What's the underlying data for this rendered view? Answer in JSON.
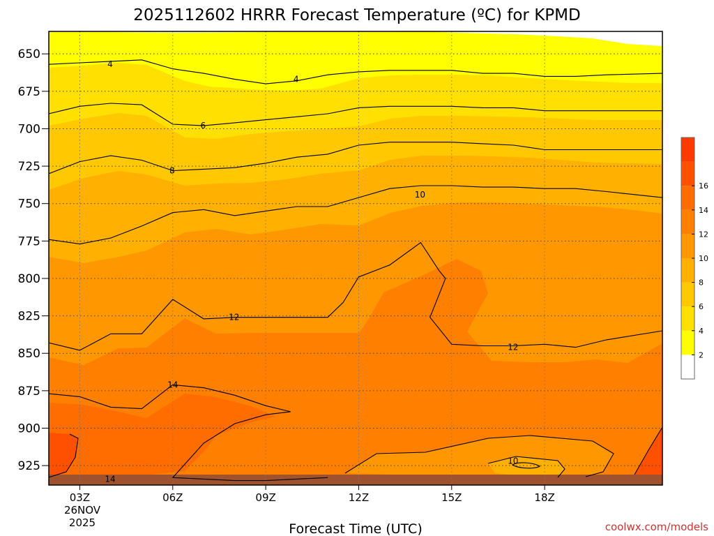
{
  "chart_data": {
    "type": "contour",
    "title": "2025112602 HRRR Forecast Temperature (ºC) for KPMD",
    "xlabel": "Forecast Time (UTC)",
    "ylabel": "",
    "credit": "coolwx.com/models",
    "x_ticks": [
      "03Z",
      "06Z",
      "09Z",
      "12Z",
      "15Z",
      "18Z"
    ],
    "x_date_label": [
      "26NOV",
      "2025"
    ],
    "x_hours": [
      3,
      6,
      9,
      12,
      15,
      18
    ],
    "xlim_hours": [
      2,
      21.8
    ],
    "y_ticks": [
      650,
      675,
      700,
      725,
      750,
      775,
      800,
      825,
      850,
      875,
      900,
      925
    ],
    "ylim_hpa": [
      635,
      938
    ],
    "y_scale": "reversed pressure (hPa)",
    "grid": "dotted",
    "colorbar_ticks": [
      2,
      4,
      6,
      8,
      10,
      12,
      14,
      16
    ],
    "colorbar_colors": [
      "#ffffff",
      "#ffff00",
      "#ffe000",
      "#ffc800",
      "#ffb000",
      "#ff9800",
      "#ff8000",
      "#ff6c00",
      "#ff5000",
      "#ff3a00"
    ],
    "contour_labels": [
      {
        "text": "4",
        "hour": 3.98,
        "hpa": 657
      },
      {
        "text": "4",
        "hour": 9.98,
        "hpa": 667
      },
      {
        "text": "6",
        "hour": 6.98,
        "hpa": 698
      },
      {
        "text": "8",
        "hour": 5.98,
        "hpa": 728
      },
      {
        "text": "10",
        "hour": 13.98,
        "hpa": 744
      },
      {
        "text": "12",
        "hour": 7.98,
        "hpa": 826
      },
      {
        "text": "12",
        "hour": 16.98,
        "hpa": 846
      },
      {
        "text": "14",
        "hour": 6.0,
        "hpa": 871
      },
      {
        "text": "14",
        "hour": 3.98,
        "hpa": 934
      },
      {
        "text": "10",
        "hour": 16.98,
        "hpa": 922
      }
    ],
    "contour_lines": [
      {
        "level": 4,
        "points": [
          [
            2,
            657
          ],
          [
            3,
            656
          ],
          [
            4,
            655
          ],
          [
            5,
            654
          ],
          [
            6,
            660
          ],
          [
            7,
            663
          ],
          [
            8,
            667
          ],
          [
            9,
            670
          ],
          [
            10,
            668
          ],
          [
            11,
            664
          ],
          [
            12,
            662
          ],
          [
            13,
            661
          ],
          [
            14,
            661
          ],
          [
            15,
            661
          ],
          [
            16,
            663
          ],
          [
            17,
            663
          ],
          [
            18,
            665
          ],
          [
            19,
            665
          ],
          [
            20,
            664
          ],
          [
            21.8,
            663
          ]
        ]
      },
      {
        "level": 6,
        "points": [
          [
            2,
            690
          ],
          [
            3,
            685
          ],
          [
            4,
            683
          ],
          [
            5,
            684
          ],
          [
            6,
            697
          ],
          [
            7,
            698
          ],
          [
            8,
            696
          ],
          [
            9,
            694
          ],
          [
            10,
            692
          ],
          [
            11,
            690
          ],
          [
            12,
            686
          ],
          [
            13,
            685
          ],
          [
            14,
            685
          ],
          [
            15,
            685
          ],
          [
            16,
            686
          ],
          [
            17,
            686
          ],
          [
            18,
            688
          ],
          [
            19,
            688
          ],
          [
            20,
            688
          ],
          [
            21.8,
            688
          ]
        ]
      },
      {
        "level": 8,
        "points": [
          [
            2,
            730
          ],
          [
            3,
            722
          ],
          [
            4,
            718
          ],
          [
            5,
            721
          ],
          [
            6,
            728
          ],
          [
            7,
            727
          ],
          [
            8,
            726
          ],
          [
            9,
            723
          ],
          [
            10,
            719
          ],
          [
            11,
            717
          ],
          [
            12,
            711
          ],
          [
            13,
            709
          ],
          [
            14,
            709
          ],
          [
            15,
            709
          ],
          [
            16,
            710
          ],
          [
            17,
            711
          ],
          [
            18,
            714
          ],
          [
            19,
            714
          ],
          [
            20,
            714
          ],
          [
            21.8,
            714
          ]
        ]
      },
      {
        "level": 10,
        "points": [
          [
            2,
            774
          ],
          [
            3,
            777
          ],
          [
            4,
            773
          ],
          [
            5,
            765
          ],
          [
            6,
            756
          ],
          [
            7,
            754
          ],
          [
            8,
            758
          ],
          [
            9,
            755
          ],
          [
            10,
            752
          ],
          [
            11,
            752
          ],
          [
            12,
            746
          ],
          [
            13,
            740
          ],
          [
            14,
            738
          ],
          [
            15,
            738
          ],
          [
            16,
            739
          ],
          [
            17,
            739
          ],
          [
            18,
            740
          ],
          [
            19,
            740
          ],
          [
            20,
            742
          ],
          [
            21.8,
            746
          ]
        ]
      },
      {
        "level": 12,
        "points": [
          [
            2,
            843
          ],
          [
            3,
            848
          ],
          [
            4,
            837
          ],
          [
            5,
            837
          ],
          [
            6,
            814
          ],
          [
            7,
            827
          ],
          [
            8,
            826
          ],
          [
            9,
            826
          ],
          [
            10,
            826
          ],
          [
            11,
            826
          ],
          [
            11.5,
            816
          ],
          [
            12,
            799
          ],
          [
            13,
            791
          ],
          [
            14,
            776
          ],
          [
            14.6,
            795
          ],
          [
            14.8,
            800
          ],
          [
            14.3,
            826
          ],
          [
            15,
            844
          ],
          [
            16,
            845
          ],
          [
            17,
            845
          ],
          [
            18,
            844
          ],
          [
            19,
            846
          ],
          [
            20,
            841
          ],
          [
            21.8,
            835
          ]
        ]
      },
      {
        "level": 14,
        "points": [
          [
            2,
            877
          ],
          [
            3,
            879
          ],
          [
            4,
            886
          ],
          [
            5,
            887
          ],
          [
            6,
            871
          ],
          [
            7,
            873
          ],
          [
            8,
            878
          ],
          [
            9,
            885
          ],
          [
            9.8,
            889
          ],
          [
            9,
            891
          ],
          [
            8,
            897
          ],
          [
            7,
            910
          ],
          [
            6,
            933
          ],
          [
            7,
            934
          ],
          [
            8,
            935
          ],
          [
            9,
            935
          ],
          [
            10,
            934
          ],
          [
            11,
            933
          ]
        ]
      }
    ]
  }
}
